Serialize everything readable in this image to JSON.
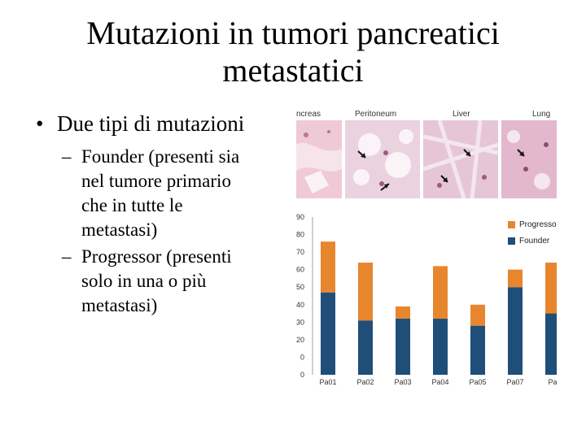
{
  "slide": {
    "title_line1": "Mutazioni in tumori pancreatici",
    "title_line2": "metastatici",
    "bullet": "Due tipi di mutazioni",
    "sub1_lines": [
      "Founder (presenti sia",
      "nel tumore primario",
      "che in tutte le",
      "metastasi)"
    ],
    "sub2_lines": [
      "Progressor (presenti",
      "solo in una o più",
      "metastasi)"
    ]
  },
  "figure": {
    "panels": [
      "ncreas",
      "Peritoneum",
      "Liver",
      "Lung"
    ]
  },
  "chart_data": {
    "type": "bar",
    "stacked": true,
    "categories": [
      "Pa01",
      "Pa02",
      "Pa03",
      "Pa04",
      "Pa05",
      "Pa07",
      "Pa"
    ],
    "series": [
      {
        "name": "Founder",
        "color": "#1f4e79",
        "values": [
          47,
          31,
          32,
          32,
          28,
          50,
          35
        ]
      },
      {
        "name": "Progressor",
        "color": "#e8862e",
        "values": [
          29,
          33,
          7,
          30,
          12,
          10,
          29
        ]
      }
    ],
    "ytick_labels": [
      "0",
      "0",
      "20",
      "30",
      "40",
      "50",
      "60",
      "70",
      "80",
      "90"
    ],
    "ylim": [
      0,
      90
    ],
    "legend_position": "top-right"
  }
}
